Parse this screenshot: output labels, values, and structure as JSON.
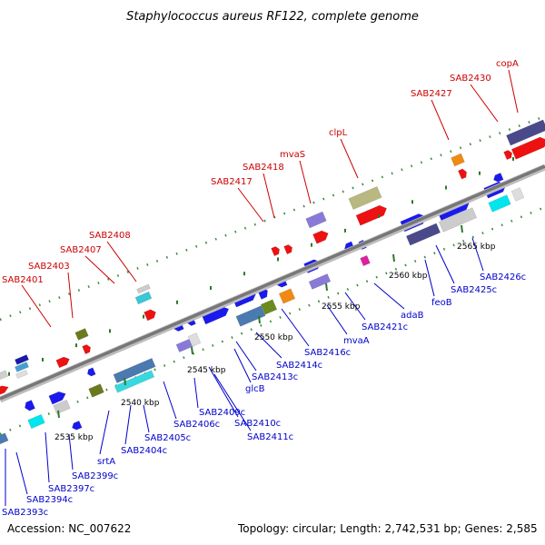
{
  "title": "Staphylococcus aureus RF122, complete genome",
  "accession": "Accession: NC_007622",
  "topology": "Topology: circular; Length: 2,742,531 bp; Genes: 2,585",
  "colors": {
    "forward_label": "#cc0000",
    "reverse_label": "#0000cc",
    "backbone": "#8c8c8c",
    "tick": "#2a7a2a"
  },
  "kbp_labels": [
    {
      "text": "2535 kbp"
    },
    {
      "text": "2540 kbp"
    },
    {
      "text": "2545 kbp"
    },
    {
      "text": "2550 kbp"
    },
    {
      "text": "2555 kbp"
    },
    {
      "text": "2560 kbp"
    },
    {
      "text": "2565 kbp"
    }
  ],
  "forward_labels": [
    {
      "text": "SAB2401"
    },
    {
      "text": "SAB2403"
    },
    {
      "text": "SAB2407"
    },
    {
      "text": "SAB2408"
    },
    {
      "text": "SAB2417"
    },
    {
      "text": "SAB2418"
    },
    {
      "text": "mvaS"
    },
    {
      "text": "clpL"
    },
    {
      "text": "SAB2427"
    },
    {
      "text": "SAB2430"
    },
    {
      "text": "copA"
    }
  ],
  "reverse_labels": [
    {
      "text": "SAB2393c"
    },
    {
      "text": "SAB2394c"
    },
    {
      "text": "SAB2397c"
    },
    {
      "text": "SAB2399c"
    },
    {
      "text": "srtA"
    },
    {
      "text": "SAB2404c"
    },
    {
      "text": "SAB2405c"
    },
    {
      "text": "SAB2406c"
    },
    {
      "text": "SAB2409c"
    },
    {
      "text": "SAB2410c"
    },
    {
      "text": "SAB2411c"
    },
    {
      "text": "glcB"
    },
    {
      "text": "SAB2413c"
    },
    {
      "text": "SAB2414c"
    },
    {
      "text": "SAB2416c"
    },
    {
      "text": "mvaA"
    },
    {
      "text": "SAB2421c"
    },
    {
      "text": "adaB"
    },
    {
      "text": "feoB"
    },
    {
      "text": "SAB2425c"
    },
    {
      "text": "SAB2426c"
    }
  ]
}
